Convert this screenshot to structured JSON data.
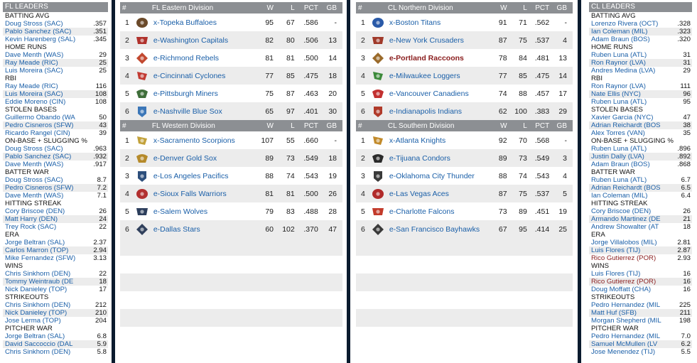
{
  "fl_leaders": {
    "title": "FL LEADERS",
    "categories": [
      {
        "name": "BATTING AVG",
        "rows": [
          {
            "player": "Doug Stross (SAC)",
            "value": ".357"
          },
          {
            "player": "Pablo Sanchez (SAC)",
            "value": ".351"
          },
          {
            "player": "Kevin Harenberg (SAL)",
            "value": ".345"
          }
        ]
      },
      {
        "name": "HOME RUNS",
        "rows": [
          {
            "player": "Dave Menth (WAS)",
            "value": "29"
          },
          {
            "player": "Ray Meade (RIC)",
            "value": "25"
          },
          {
            "player": "Luis Moreira (SAC)",
            "value": "25"
          }
        ]
      },
      {
        "name": "RBI",
        "rows": [
          {
            "player": "Ray Meade (RIC)",
            "value": "116"
          },
          {
            "player": "Luis Moreira (SAC)",
            "value": "108"
          },
          {
            "player": "Eddie Moreno (CIN)",
            "value": "108"
          }
        ]
      },
      {
        "name": "STOLEN BASES",
        "rows": [
          {
            "player": "Guillermo Obando (WA",
            "value": "50"
          },
          {
            "player": "Pedro Cisneros (SFW)",
            "value": "43"
          },
          {
            "player": "Ricardo Rangel (CIN)",
            "value": "39"
          }
        ]
      },
      {
        "name": "ON-BASE + SLUGGING %",
        "rows": [
          {
            "player": "Doug Stross (SAC)",
            "value": ".963"
          },
          {
            "player": "Pablo Sanchez (SAC)",
            "value": ".932"
          },
          {
            "player": "Dave Menth (WAS)",
            "value": ".917"
          }
        ]
      },
      {
        "name": "BATTER WAR",
        "rows": [
          {
            "player": "Doug Stross (SAC)",
            "value": "8.7"
          },
          {
            "player": "Pedro Cisneros (SFW)",
            "value": "7.2"
          },
          {
            "player": "Dave Menth (WAS)",
            "value": "7.1"
          }
        ]
      },
      {
        "name": "HITTING STREAK",
        "rows": [
          {
            "player": "Cory Briscoe (DEN)",
            "value": "26"
          },
          {
            "player": "Matt Harry (DEN)",
            "value": "24"
          },
          {
            "player": "Trey Rock (SAC)",
            "value": "22"
          }
        ]
      },
      {
        "name": "ERA",
        "rows": [
          {
            "player": "Jorge Beltran (SAL)",
            "value": "2.37"
          },
          {
            "player": "Carlos Marron (TOP)",
            "value": "2.94"
          },
          {
            "player": "Mike Fernandez (SFW)",
            "value": "3.13"
          }
        ]
      },
      {
        "name": "WINS",
        "rows": [
          {
            "player": "Chris Sinkhorn (DEN)",
            "value": "22"
          },
          {
            "player": "Tommy Weintraub (DE",
            "value": "18"
          },
          {
            "player": "Nick Danieley (TOP)",
            "value": "17"
          }
        ]
      },
      {
        "name": "STRIKEOUTS",
        "rows": [
          {
            "player": "Chris Sinkhorn (DEN)",
            "value": "212"
          },
          {
            "player": "Nick Danieley (TOP)",
            "value": "210"
          },
          {
            "player": "Jose Lerma (TOP)",
            "value": "204"
          }
        ]
      },
      {
        "name": "PITCHER WAR",
        "rows": [
          {
            "player": "Jorge Beltran (SAL)",
            "value": "6.8"
          },
          {
            "player": "David Saccoccio (DAL",
            "value": "5.9"
          },
          {
            "player": "Chris Sinkhorn (DEN)",
            "value": "5.8"
          }
        ]
      }
    ]
  },
  "cl_leaders": {
    "title": "CL LEADERS",
    "categories": [
      {
        "name": "BATTING AVG",
        "rows": [
          {
            "player": "Lorenzo Rivera (OCT)",
            "value": ".328"
          },
          {
            "player": "Ian Coleman (MIL)",
            "value": ".323"
          },
          {
            "player": "Adam Braun (BOS)",
            "value": ".320"
          }
        ]
      },
      {
        "name": "HOME RUNS",
        "rows": [
          {
            "player": "Ruben Luna (ATL)",
            "value": "31"
          },
          {
            "player": "Ron Raynor (LVA)",
            "value": "31"
          },
          {
            "player": "Andres Medina (LVA)",
            "value": "29"
          }
        ]
      },
      {
        "name": "RBI",
        "rows": [
          {
            "player": "Ron Raynor (LVA)",
            "value": "111"
          },
          {
            "player": "Nate Ellis (NYC)",
            "value": "96"
          },
          {
            "player": "Ruben Luna (ATL)",
            "value": "95"
          }
        ]
      },
      {
        "name": "STOLEN BASES",
        "rows": [
          {
            "player": "Xavier Garcia (NYC)",
            "value": "47"
          },
          {
            "player": "Adrian Reichardt (BOS",
            "value": "38"
          },
          {
            "player": "Alex Torres (VAN)",
            "value": "35"
          }
        ]
      },
      {
        "name": "ON-BASE + SLUGGING %",
        "rows": [
          {
            "player": "Ruben Luna (ATL)",
            "value": ".896"
          },
          {
            "player": "Justin Dally (LVA)",
            "value": ".892"
          },
          {
            "player": "Adam Braun (BOS)",
            "value": ".868"
          }
        ]
      },
      {
        "name": "BATTER WAR",
        "rows": [
          {
            "player": "Ruben Luna (ATL)",
            "value": "6.7"
          },
          {
            "player": "Adrian Reichardt (BOS",
            "value": "6.5"
          },
          {
            "player": "Ian Coleman (MIL)",
            "value": "6.4"
          }
        ]
      },
      {
        "name": "HITTING STREAK",
        "rows": [
          {
            "player": "Cory Briscoe (DEN)",
            "value": "26"
          },
          {
            "player": "Armando Martinez (DE",
            "value": "21"
          },
          {
            "player": "Andrew Showalter (AT",
            "value": "18"
          }
        ]
      },
      {
        "name": "ERA",
        "rows": [
          {
            "player": "Jorge Villalobos (MIL)",
            "value": "2.81"
          },
          {
            "player": "Luis Flores (TIJ)",
            "value": "2.87"
          },
          {
            "player": "Rico Gutierrez (POR)",
            "value": "2.93",
            "own": true
          }
        ]
      },
      {
        "name": "WINS",
        "rows": [
          {
            "player": "Luis Flores (TIJ)",
            "value": "16"
          },
          {
            "player": "Rico Gutierrez (POR)",
            "value": "16",
            "own": true
          },
          {
            "player": "Doug Moffatt (CHA)",
            "value": "16"
          }
        ]
      },
      {
        "name": "STRIKEOUTS",
        "rows": [
          {
            "player": "Pedro Hernandez (MIL",
            "value": "225"
          },
          {
            "player": "Matt Huf (SFB)",
            "value": "211"
          },
          {
            "player": "Morgan Shepherd (MIL",
            "value": "198"
          }
        ]
      },
      {
        "name": "PITCHER WAR",
        "rows": [
          {
            "player": "Pedro Hernandez (MIL",
            "value": "7.0"
          },
          {
            "player": "Samuel McMullen (LV",
            "value": "6.2"
          },
          {
            "player": "Jose Menendez (TIJ)",
            "value": "5.5"
          }
        ]
      }
    ]
  },
  "columns": {
    "hash": "#",
    "w": "W",
    "l": "L",
    "pct": "PCT",
    "gb": "GB"
  },
  "fl_standings": [
    {
      "division": "FL Eastern Division",
      "teams": [
        {
          "rank": "1",
          "name": "x-Topeka Buffaloes",
          "w": "95",
          "l": "67",
          "pct": ".586",
          "gb": "-",
          "color": "#6b4a2a"
        },
        {
          "rank": "2",
          "name": "e-Washington Capitals",
          "w": "82",
          "l": "80",
          "pct": ".506",
          "gb": "13",
          "color": "#b0322c"
        },
        {
          "rank": "3",
          "name": "e-Richmond Rebels",
          "w": "81",
          "l": "81",
          "pct": ".500",
          "gb": "14",
          "color": "#c2482f"
        },
        {
          "rank": "4",
          "name": "e-Cincinnati Cyclones",
          "w": "77",
          "l": "85",
          "pct": ".475",
          "gb": "18",
          "color": "#c23a32"
        },
        {
          "rank": "5",
          "name": "e-Pittsburgh Miners",
          "w": "75",
          "l": "87",
          "pct": ".463",
          "gb": "20",
          "color": "#3f6e3a"
        },
        {
          "rank": "6",
          "name": "e-Nashville Blue Sox",
          "w": "65",
          "l": "97",
          "pct": ".401",
          "gb": "30",
          "color": "#3c77b8"
        }
      ]
    },
    {
      "division": "FL Western Division",
      "teams": [
        {
          "rank": "1",
          "name": "x-Sacramento Scorpions",
          "w": "107",
          "l": "55",
          "pct": ".660",
          "gb": "-",
          "color": "#c2a13a"
        },
        {
          "rank": "2",
          "name": "e-Denver Gold Sox",
          "w": "89",
          "l": "73",
          "pct": ".549",
          "gb": "18",
          "color": "#b58a2a"
        },
        {
          "rank": "3",
          "name": "e-Los Angeles Pacifics",
          "w": "88",
          "l": "74",
          "pct": ".543",
          "gb": "19",
          "color": "#2d4f7c"
        },
        {
          "rank": "4",
          "name": "e-Sioux Falls Warriors",
          "w": "81",
          "l": "81",
          "pct": ".500",
          "gb": "26",
          "color": "#b23030"
        },
        {
          "rank": "5",
          "name": "e-Salem Wolves",
          "w": "79",
          "l": "83",
          "pct": ".488",
          "gb": "28",
          "color": "#2c3e5c"
        },
        {
          "rank": "6",
          "name": "e-Dallas Stars",
          "w": "60",
          "l": "102",
          "pct": ".370",
          "gb": "47",
          "color": "#30405c"
        }
      ]
    }
  ],
  "cl_standings": [
    {
      "division": "CL Northern Division",
      "teams": [
        {
          "rank": "1",
          "name": "x-Boston Titans",
          "w": "91",
          "l": "71",
          "pct": ".562",
          "gb": "-",
          "color": "#2a5aa8"
        },
        {
          "rank": "2",
          "name": "e-New York Crusaders",
          "w": "87",
          "l": "75",
          "pct": ".537",
          "gb": "4",
          "color": "#a03a2a"
        },
        {
          "rank": "3",
          "name": "e-Portland Raccoons",
          "w": "78",
          "l": "84",
          "pct": ".481",
          "gb": "13",
          "color": "#9a6a2a",
          "current": true
        },
        {
          "rank": "4",
          "name": "e-Milwaukee Loggers",
          "w": "77",
          "l": "85",
          "pct": ".475",
          "gb": "14",
          "color": "#3c8a3a"
        },
        {
          "rank": "5",
          "name": "e-Vancouver Canadiens",
          "w": "74",
          "l": "88",
          "pct": ".457",
          "gb": "17",
          "color": "#c23030"
        },
        {
          "rank": "6",
          "name": "e-Indianapolis Indians",
          "w": "62",
          "l": "100",
          "pct": ".383",
          "gb": "29",
          "color": "#b03a2a"
        }
      ]
    },
    {
      "division": "CL Southern Division",
      "teams": [
        {
          "rank": "1",
          "name": "x-Atlanta Knights",
          "w": "92",
          "l": "70",
          "pct": ".568",
          "gb": "-",
          "color": "#c28a2a"
        },
        {
          "rank": "2",
          "name": "e-Tijuana Condors",
          "w": "89",
          "l": "73",
          "pct": ".549",
          "gb": "3",
          "color": "#2a2a2a"
        },
        {
          "rank": "3",
          "name": "e-Oklahoma City Thunder",
          "w": "88",
          "l": "74",
          "pct": ".543",
          "gb": "4",
          "color": "#3a3a3a"
        },
        {
          "rank": "4",
          "name": "e-Las Vegas Aces",
          "w": "87",
          "l": "75",
          "pct": ".537",
          "gb": "5",
          "color": "#b02a2a"
        },
        {
          "rank": "5",
          "name": "e-Charlotte Falcons",
          "w": "73",
          "l": "89",
          "pct": ".451",
          "gb": "19",
          "color": "#c23a2a"
        },
        {
          "rank": "6",
          "name": "e-San Francisco Bayhawks",
          "w": "67",
          "l": "95",
          "pct": ".414",
          "gb": "25",
          "color": "#3a3a3a"
        }
      ]
    }
  ]
}
